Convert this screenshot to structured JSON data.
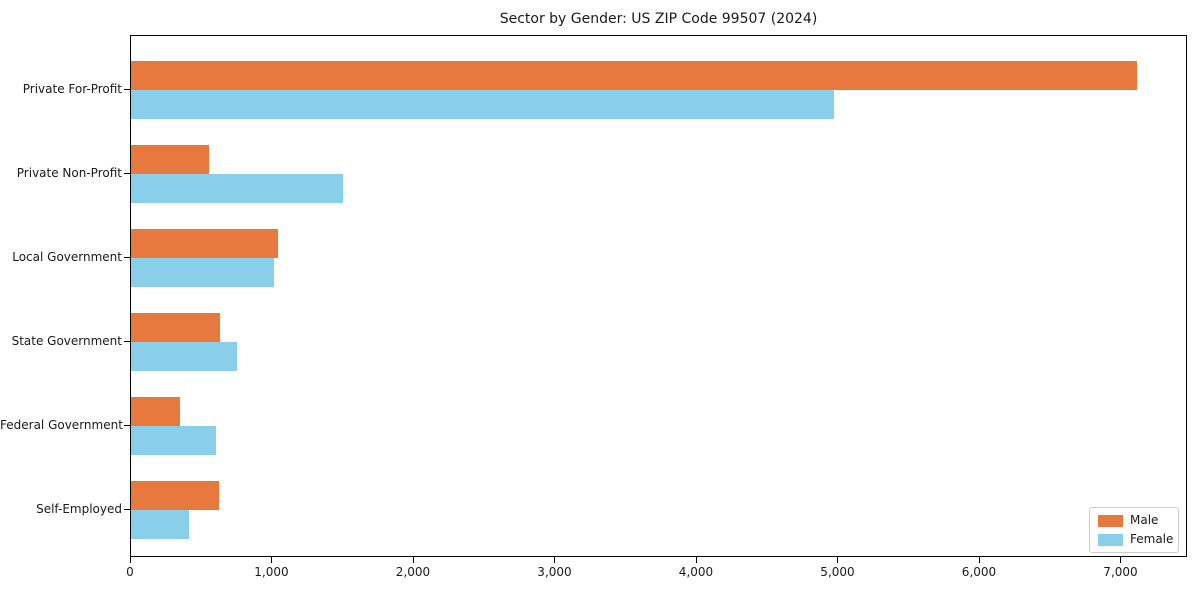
{
  "chart_data": {
    "type": "bar",
    "orientation": "horizontal",
    "title": "Sector by Gender: US ZIP Code 99507 (2024)",
    "categories": [
      "Private For-Profit",
      "Private Non-Profit",
      "Local Government",
      "State Government",
      "Federal Government",
      "Self-Employed"
    ],
    "series": [
      {
        "name": "Male",
        "color": "#e8793e",
        "values": [
          7110,
          550,
          1040,
          630,
          345,
          625
        ]
      },
      {
        "name": "Female",
        "color": "#89cfe9",
        "values": [
          4970,
          1500,
          1010,
          750,
          600,
          410
        ]
      }
    ],
    "xlabel": "",
    "ylabel": "",
    "xlim": [
      0,
      7470
    ],
    "xticks": [
      0,
      1000,
      2000,
      3000,
      4000,
      5000,
      6000,
      7000
    ],
    "xtick_labels": [
      "0",
      "1,000",
      "2,000",
      "3,000",
      "4,000",
      "5,000",
      "6,000",
      "7,000"
    ],
    "grid": false,
    "legend": {
      "position": "lower right"
    }
  }
}
